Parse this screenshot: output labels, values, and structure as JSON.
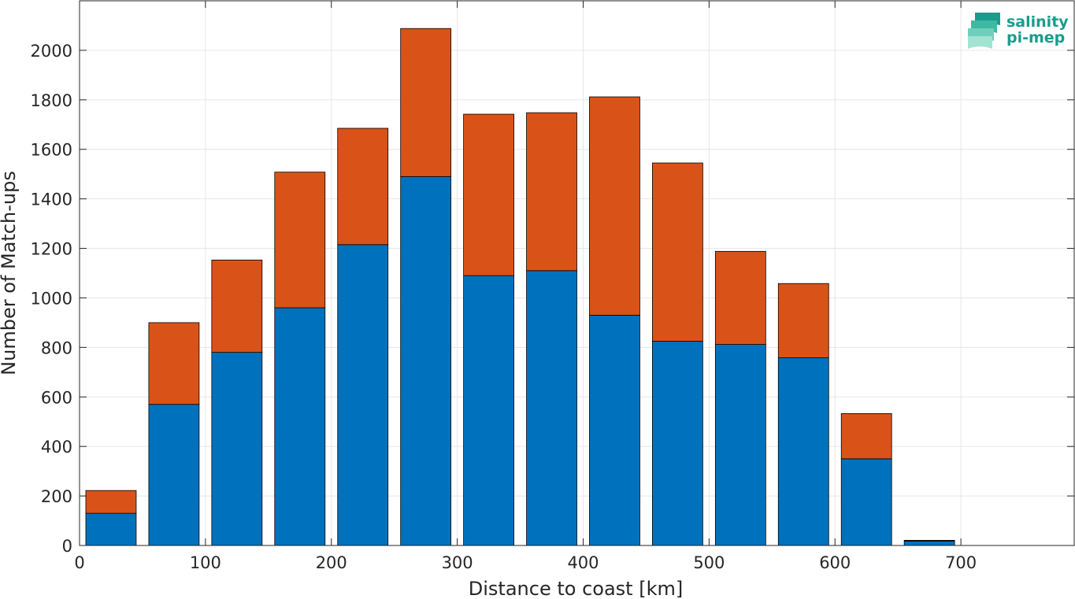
{
  "chart_data": {
    "type": "bar",
    "stacked": true,
    "xlabel": "Distance to coast [km]",
    "ylabel": "Number of Match-ups",
    "xlim": [
      0,
      790
    ],
    "ylim": [
      0,
      2200
    ],
    "xticks": [
      0,
      100,
      200,
      300,
      400,
      500,
      600,
      700
    ],
    "yticks": [
      0,
      200,
      400,
      600,
      800,
      1000,
      1200,
      1400,
      1600,
      1800,
      2000
    ],
    "grid": true,
    "bin_width": 50,
    "bar_width": 40,
    "x": [
      25,
      75,
      125,
      175,
      225,
      275,
      325,
      375,
      425,
      475,
      525,
      575,
      625,
      675,
      725
    ],
    "series": [
      {
        "color": "#0072BD",
        "values": [
          130,
          570,
          780,
          960,
          1215,
          1490,
          1090,
          1110,
          930,
          825,
          812,
          758,
          350,
          18,
          0
        ]
      },
      {
        "color": "#D95319",
        "values": [
          92,
          330,
          373,
          548,
          470,
          598,
          652,
          638,
          882,
          720,
          376,
          300,
          183,
          3,
          0
        ]
      }
    ]
  },
  "logo": {
    "line1": "salinity",
    "line2": "pi-mep",
    "icon": "wave-layers-icon",
    "color": "#1a9c8c"
  }
}
